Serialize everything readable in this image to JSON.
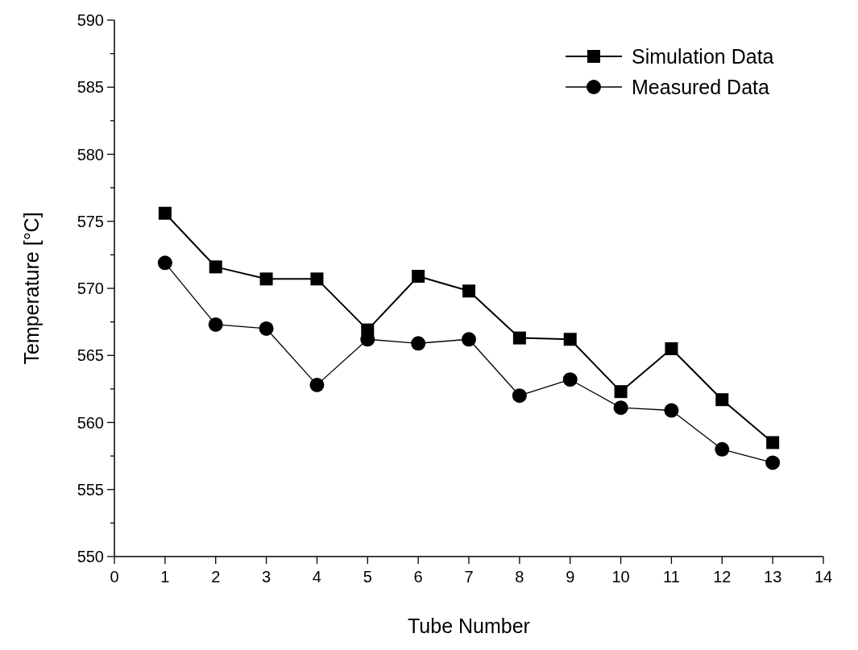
{
  "chart_data": {
    "type": "line",
    "xlabel": "Tube Number",
    "ylabel": "Temperature [°C]",
    "x": [
      1,
      2,
      3,
      4,
      5,
      6,
      7,
      8,
      9,
      10,
      11,
      12,
      13
    ],
    "xlim": [
      0,
      14
    ],
    "xticks": [
      0,
      1,
      2,
      3,
      4,
      5,
      6,
      7,
      8,
      9,
      10,
      11,
      12,
      13,
      14
    ],
    "ylim": [
      550,
      590
    ],
    "yticks": [
      550,
      {
        "value": 552.5,
        "label": null
      },
      555,
      {
        "value": 557.5,
        "label": null
      },
      560,
      {
        "value": 562.5,
        "label": null
      },
      565,
      {
        "value": 567.5,
        "label": null
      },
      570,
      {
        "value": 572.5,
        "label": null
      },
      575,
      {
        "value": 577.5,
        "label": null
      },
      580,
      {
        "value": 582.5,
        "label": null
      },
      585,
      {
        "value": 587.5,
        "label": null
      },
      590
    ],
    "grid": false,
    "legend": "top right",
    "line_style": "solid",
    "series": [
      {
        "name": "Simulation Data",
        "color": "#000000",
        "marker": "square",
        "values": [
          575.6,
          571.6,
          570.7,
          570.7,
          566.9,
          570.9,
          569.8,
          566.3,
          566.2,
          562.3,
          565.5,
          561.7,
          558.5
        ]
      },
      {
        "name": "Measured Data",
        "color": "#000000",
        "marker": "circle",
        "values": [
          571.9,
          567.3,
          567.0,
          562.8,
          566.2,
          565.9,
          566.2,
          562.0,
          563.2,
          561.1,
          560.9,
          558.0,
          557.0
        ]
      }
    ]
  }
}
